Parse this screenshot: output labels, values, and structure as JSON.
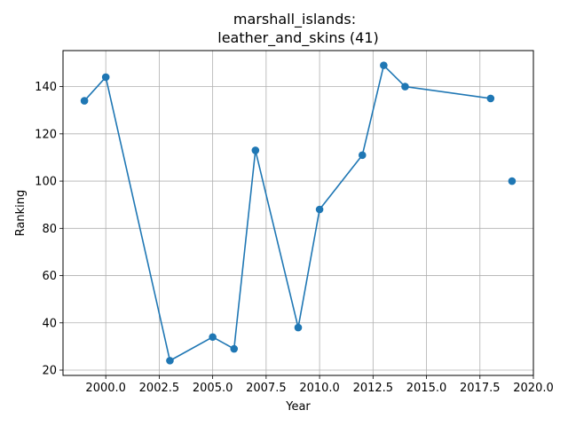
{
  "chart_data": {
    "type": "line",
    "title_line1": "marshall_islands:",
    "title_line2": "leather_and_skins (41)",
    "xlabel": "Year",
    "ylabel": "Ranking",
    "xlim": [
      1998.0,
      2020.0
    ],
    "ylim": [
      17.75,
      155.25
    ],
    "x_ticks": [
      2000.0,
      2002.5,
      2005.0,
      2007.5,
      2010.0,
      2012.5,
      2015.0,
      2017.5,
      2020.0
    ],
    "x_tick_labels": [
      "2000.0",
      "2002.5",
      "2005.0",
      "2007.5",
      "2010.0",
      "2012.5",
      "2015.0",
      "2017.5",
      "2020.0"
    ],
    "y_ticks": [
      20,
      40,
      60,
      80,
      100,
      120,
      140
    ],
    "y_tick_labels": [
      "20",
      "40",
      "60",
      "80",
      "100",
      "120",
      "140"
    ],
    "grid": true,
    "line_color": "#1f77b4",
    "segments": [
      {
        "x": [
          1999,
          2000,
          2003,
          2005,
          2006,
          2007,
          2009,
          2010,
          2012,
          2013,
          2014,
          2018
        ],
        "y": [
          134,
          144,
          24,
          34,
          29,
          113,
          38,
          88,
          111,
          149,
          140,
          135
        ]
      },
      {
        "x": [
          2019
        ],
        "y": [
          100
        ]
      }
    ]
  }
}
